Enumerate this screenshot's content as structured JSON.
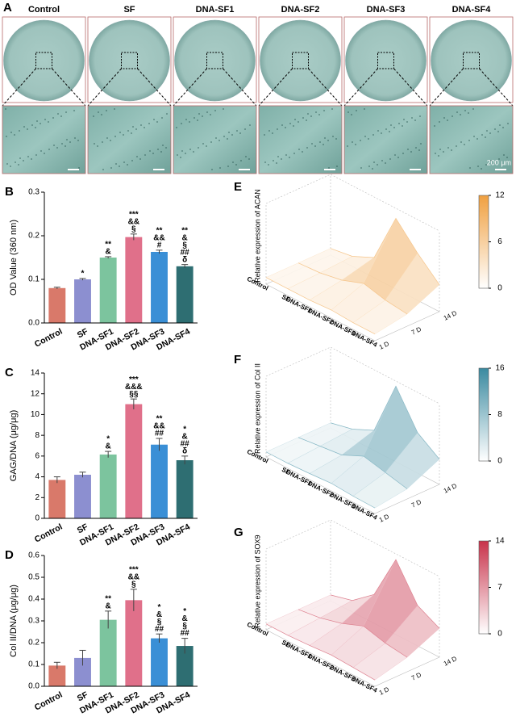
{
  "panel_a": {
    "label": "A",
    "labels": [
      "Control",
      "SF",
      "DNA-SF1",
      "DNA-SF2",
      "DNA-SF3",
      "DNA-SF4"
    ],
    "scale_bar": "200 μm"
  },
  "chart_data": [
    {
      "type": "bar",
      "label": "B",
      "ylabel": "OD Value (360 nm)",
      "categories": [
        "Control",
        "SF",
        "DNA-SF1",
        "DNA-SF2",
        "DNA-SF3",
        "DNA-SF4"
      ],
      "values": [
        0.08,
        0.1,
        0.15,
        0.197,
        0.163,
        0.13
      ],
      "errors": [
        0.002,
        0.002,
        0.002,
        0.007,
        0.004,
        0.004
      ],
      "colors": [
        "#d9796a",
        "#8c8fd0",
        "#7cc49e",
        "#e0708a",
        "#3a8fd6",
        "#2e6e72"
      ],
      "annotations": [
        [],
        [
          "*"
        ],
        [
          "**",
          "&"
        ],
        [
          "***",
          "&&",
          "§"
        ],
        [
          "**",
          "&&",
          "#"
        ],
        [
          "**",
          "&",
          "§",
          "##",
          "δ"
        ]
      ],
      "ylim": [
        0,
        0.3
      ],
      "yticks": [
        {
          "value": 0,
          "label": "0.0"
        },
        0.1,
        0.2,
        0.3
      ]
    },
    {
      "type": "bar",
      "label": "C",
      "ylabel": "GAG/DNA (μg/μg)",
      "categories": [
        "Control",
        "SF",
        "DNA-SF1",
        "DNA-SF2",
        "DNA-SF3",
        "DNA-SF4"
      ],
      "values": [
        3.7,
        4.2,
        6.15,
        11.0,
        7.1,
        5.6
      ],
      "errors": [
        0.3,
        0.25,
        0.3,
        0.5,
        0.6,
        0.4
      ],
      "colors": [
        "#d9796a",
        "#8c8fd0",
        "#7cc49e",
        "#e0708a",
        "#3a8fd6",
        "#2e6e72"
      ],
      "annotations": [
        [],
        [],
        [
          "*",
          "&"
        ],
        [
          "***",
          "&&&",
          "§§"
        ],
        [
          "**",
          "&&",
          "##"
        ],
        [
          "*",
          "&",
          "##",
          "δ"
        ]
      ],
      "ylim": [
        0,
        14
      ],
      "yticks": [
        0,
        2,
        4,
        6,
        8,
        10,
        12,
        14
      ]
    },
    {
      "type": "bar",
      "label": "D",
      "ylabel": "Col II/DNA (μg/μg)",
      "categories": [
        "Control",
        "SF",
        "DNA-SF1",
        "DNA-SF2",
        "DNA-SF3",
        "DNA-SF4"
      ],
      "values": [
        0.095,
        0.13,
        0.305,
        0.395,
        0.22,
        0.185
      ],
      "errors": [
        0.015,
        0.035,
        0.04,
        0.05,
        0.02,
        0.035
      ],
      "colors": [
        "#d9796a",
        "#8c8fd0",
        "#7cc49e",
        "#e0708a",
        "#3a8fd6",
        "#2e6e72"
      ],
      "annotations": [
        [],
        [],
        [
          "**",
          "&"
        ],
        [
          "***",
          "&&",
          "§"
        ],
        [
          "*",
          "&",
          "§",
          "##"
        ],
        [
          "*",
          "&",
          "§",
          "##"
        ]
      ],
      "ylim": [
        0,
        0.6
      ],
      "yticks": [
        {
          "value": 0,
          "label": "0.0"
        },
        0.1,
        0.2,
        0.3,
        0.4,
        0.5,
        0.6
      ]
    },
    {
      "type": "surface3d",
      "label": "E",
      "zlabel": "Relative expression of ACAN",
      "categories": [
        "Control",
        "SF",
        "DNA-SF1",
        "DNA-SF2",
        "DNA-SF3",
        "DNA-SF4"
      ],
      "series": [
        {
          "name": "1 D",
          "values": [
            1,
            1,
            1,
            1.2,
            1,
            1
          ]
        },
        {
          "name": "7 D",
          "values": [
            1,
            1.2,
            1.8,
            3,
            2.2,
            1.8
          ]
        },
        {
          "name": "14 D",
          "values": [
            1,
            1.5,
            3,
            10.5,
            7,
            4
          ]
        }
      ],
      "clim": [
        0,
        12
      ],
      "cticks": [
        0,
        6,
        12
      ],
      "color": "#f0a040"
    },
    {
      "type": "surface3d",
      "label": "F",
      "zlabel": "Relative expression of Col II",
      "categories": [
        "Control",
        "SF",
        "DNA-SF1",
        "DNA-SF2",
        "DNA-SF3",
        "DNA-SF4"
      ],
      "series": [
        {
          "name": "1 D",
          "values": [
            1,
            1,
            1.2,
            1.5,
            1.2,
            1.1
          ]
        },
        {
          "name": "7 D",
          "values": [
            1,
            1.5,
            2,
            4,
            3,
            2
          ]
        },
        {
          "name": "14 D",
          "values": [
            1,
            2,
            4,
            15,
            8,
            5
          ]
        }
      ],
      "clim": [
        0,
        16
      ],
      "cticks": [
        0,
        8,
        16
      ],
      "color": "#3a8aa0"
    },
    {
      "type": "surface3d",
      "label": "G",
      "zlabel": "Relative expression of SOX9",
      "categories": [
        "Control",
        "SF",
        "DNA-SF1",
        "DNA-SF2",
        "DNA-SF3",
        "DNA-SF4"
      ],
      "series": [
        {
          "name": "1 D",
          "values": [
            1,
            1,
            1.2,
            1.5,
            1.3,
            1.1
          ]
        },
        {
          "name": "7 D",
          "values": [
            1,
            1.5,
            2.5,
            4,
            3,
            2.5
          ]
        },
        {
          "name": "14 D",
          "values": [
            1,
            2,
            5,
            13,
            7,
            5
          ]
        }
      ],
      "clim": [
        0,
        14
      ],
      "cticks": [
        0,
        7,
        14
      ],
      "color": "#c8324a"
    }
  ]
}
